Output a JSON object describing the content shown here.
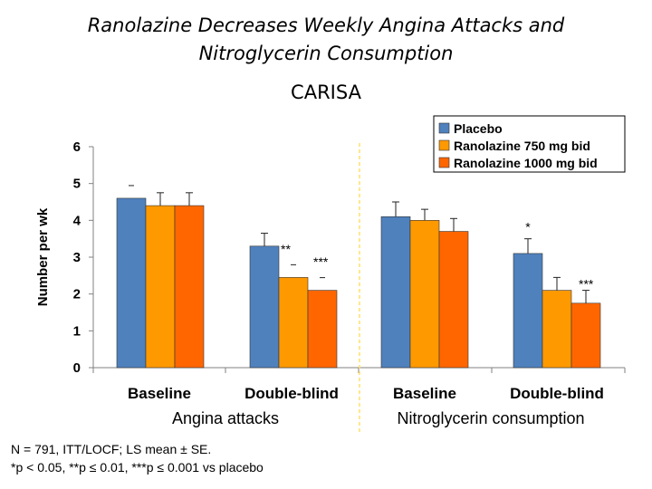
{
  "title": {
    "line1": "Ranolazine Decreases Weekly Angina Attacks and",
    "line2": "Nitroglycerin Consumption",
    "study": "CARISA"
  },
  "footnotes": {
    "line1": "N = 791, ITT/LOCF; LS mean ± SE.",
    "line2": "*p < 0.05, **p ≤ 0.01, ***p ≤ 0.001 vs placebo"
  },
  "colors": {
    "placebo": "#4F81BD",
    "ranolazine_750": "#FF9900",
    "ranolazine_1000": "#FF6600",
    "divider": "#FFE066"
  },
  "chart_data": {
    "type": "bar",
    "ylabel": "Number per wk",
    "ylim": [
      0,
      6
    ],
    "yticks": [
      "0",
      "1",
      "2",
      "3",
      "4",
      "5",
      "6"
    ],
    "groups": [
      {
        "label": "Angina attacks",
        "categories": [
          "Baseline",
          "Double-blind"
        ],
        "series": [
          {
            "name": "Placebo",
            "values": [
              4.6,
              3.3
            ],
            "errors": [
              0.0,
              0.35
            ]
          },
          {
            "name": "Ranolazine 750 mg bid",
            "values": [
              4.4,
              2.45
            ],
            "errors": [
              0.35,
              0.0
            ]
          },
          {
            "name": "Ranolazine 1000 mg bid",
            "values": [
              4.4,
              2.1
            ],
            "errors": [
              0.35,
              0.0
            ]
          }
        ],
        "annotations": [
          {
            "category": "Double-blind",
            "series": "Ranolazine 750 mg bid",
            "text": "**"
          },
          {
            "category": "Double-blind",
            "series": "Ranolazine 1000 mg bid",
            "text": "***"
          }
        ]
      },
      {
        "label": "Nitroglycerin consumption",
        "categories": [
          "Baseline",
          "Double-blind"
        ],
        "series": [
          {
            "name": "Placebo",
            "values": [
              4.1,
              3.1
            ],
            "errors": [
              0.4,
              0.4
            ]
          },
          {
            "name": "Ranolazine 750 mg bid",
            "values": [
              4.0,
              2.1
            ],
            "errors": [
              0.3,
              0.35
            ]
          },
          {
            "name": "Ranolazine 1000 mg bid",
            "values": [
              3.7,
              1.75
            ],
            "errors": [
              0.35,
              0.35
            ]
          }
        ],
        "annotations": [
          {
            "category": "Double-blind",
            "series": "Placebo",
            "text": "*"
          },
          {
            "category": "Double-blind",
            "series": "Ranolazine 1000 mg bid",
            "text": "***"
          }
        ]
      }
    ],
    "legend": {
      "placement": "top-right",
      "entries": [
        "Placebo",
        "Ranolazine 750 mg bid",
        "Ranolazine 1000 mg bid"
      ]
    }
  }
}
